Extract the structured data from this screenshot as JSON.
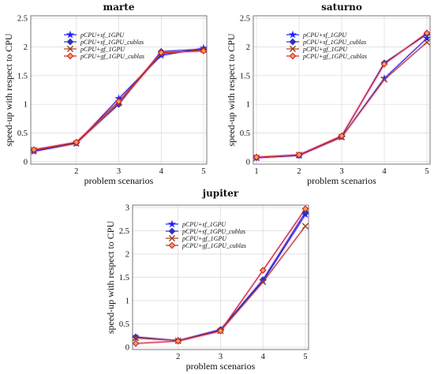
{
  "chart_data": [
    {
      "type": "line",
      "title": "marte",
      "xlabel": "problem scenarios",
      "ylabel": "speed-up with respect to CPU",
      "x": [
        1,
        2,
        3,
        4,
        5
      ],
      "xticks": [
        "2",
        "3",
        "4",
        "5"
      ],
      "yticks": [
        "0",
        "0.5",
        "1",
        "1.5",
        "2",
        "2.5"
      ],
      "xlim": [
        1,
        5
      ],
      "ylim": [
        0,
        2.5
      ],
      "grid": true,
      "legend_position": "top-left",
      "series": [
        {
          "name": "pCPU+sf_1GPU",
          "color": "#1f1fff",
          "marker": "star",
          "values": [
            0.18,
            0.32,
            1.1,
            1.85,
            1.98
          ]
        },
        {
          "name": "pCPU+sf_1GPU_cublas",
          "color": "#3030c0",
          "marker": "diamond",
          "values": [
            0.2,
            0.33,
            1.0,
            1.92,
            1.96
          ]
        },
        {
          "name": "pCPU+gf_1GPU",
          "color": "#a04020",
          "marker": "x",
          "values": [
            0.2,
            0.32,
            1.02,
            1.88,
            1.95
          ]
        },
        {
          "name": "pCPU+gf_1GPU_cublas",
          "color": "#d02020",
          "marker": "diamond-open",
          "values": [
            0.21,
            0.34,
            1.05,
            1.9,
            1.93
          ]
        }
      ]
    },
    {
      "type": "line",
      "title": "saturno",
      "xlabel": "problem scenarios",
      "ylabel": "speed-up with respect to CPU",
      "x": [
        1,
        2,
        3,
        4,
        5
      ],
      "xticks": [
        "1",
        "2",
        "3",
        "4",
        "5"
      ],
      "yticks": [
        "0",
        "0.5",
        "1",
        "1.5",
        "2",
        "2.5"
      ],
      "xlim": [
        1,
        5
      ],
      "ylim": [
        0,
        2.5
      ],
      "grid": true,
      "legend_position": "top-left",
      "series": [
        {
          "name": "pCPU+sf_1GPU",
          "color": "#1f1fff",
          "marker": "star",
          "values": [
            0.07,
            0.11,
            0.43,
            1.45,
            2.15
          ]
        },
        {
          "name": "pCPU+sf_1GPU_cublas",
          "color": "#3030c0",
          "marker": "diamond",
          "values": [
            0.07,
            0.11,
            0.44,
            1.72,
            2.22
          ]
        },
        {
          "name": "pCPU+gf_1GPU",
          "color": "#a04020",
          "marker": "x",
          "values": [
            0.07,
            0.12,
            0.43,
            1.43,
            2.08
          ]
        },
        {
          "name": "pCPU+gf_1GPU_cublas",
          "color": "#d02020",
          "marker": "diamond-open",
          "values": [
            0.08,
            0.12,
            0.45,
            1.7,
            2.24
          ]
        }
      ]
    },
    {
      "type": "line",
      "title": "jupiter",
      "xlabel": "problem scenarios",
      "ylabel": "speed-up with respect to CPU",
      "x": [
        1,
        2,
        3,
        4,
        5
      ],
      "xticks": [
        "2",
        "3",
        "4",
        "5"
      ],
      "yticks": [
        "0",
        "0.5",
        "1",
        "1.5",
        "2",
        "2.5",
        "3"
      ],
      "xlim": [
        1,
        5
      ],
      "ylim": [
        0,
        3
      ],
      "grid": true,
      "legend_position": "top-left",
      "series": [
        {
          "name": "pCPU+sf_1GPU",
          "color": "#1f1fff",
          "marker": "star",
          "values": [
            0.2,
            0.14,
            0.36,
            1.42,
            2.85
          ]
        },
        {
          "name": "pCPU+sf_1GPU_cublas",
          "color": "#3030c0",
          "marker": "diamond",
          "values": [
            0.22,
            0.14,
            0.38,
            1.45,
            2.9
          ]
        },
        {
          "name": "pCPU+gf_1GPU",
          "color": "#a04020",
          "marker": "x",
          "values": [
            0.2,
            0.14,
            0.35,
            1.4,
            2.6
          ]
        },
        {
          "name": "pCPU+gf_1GPU_cublas",
          "color": "#d02020",
          "marker": "diamond-open",
          "values": [
            0.08,
            0.13,
            0.35,
            1.65,
            2.97
          ]
        }
      ]
    }
  ]
}
